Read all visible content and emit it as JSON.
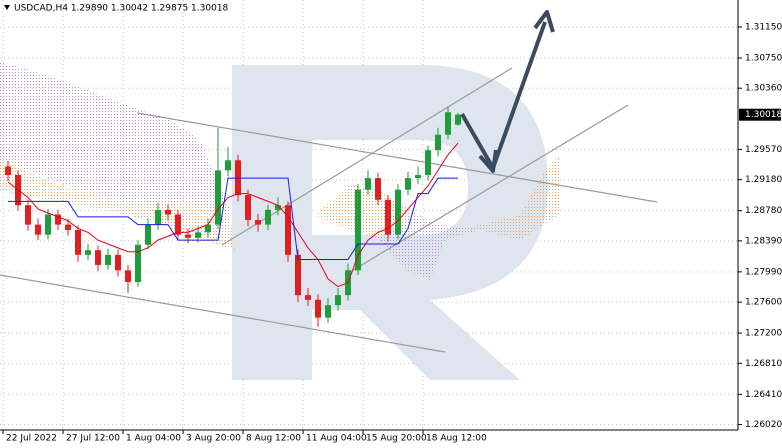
{
  "chart_data": {
    "type": "candlestick",
    "title": "USDCAD,H4  1.29890 1.30042 1.29875 1.30018",
    "categories": [
      "22 Jul 2022",
      null,
      null,
      null,
      null,
      null,
      "27 Jul 12:00",
      null,
      null,
      null,
      null,
      null,
      "1 Aug 04:00",
      null,
      null,
      null,
      null,
      null,
      "3 Aug 20:00",
      null,
      null,
      null,
      null,
      null,
      "8 Aug 12:00",
      null,
      null,
      null,
      null,
      null,
      "11 Aug 04:00",
      null,
      null,
      null,
      null,
      null,
      "15 Aug 20:00",
      null,
      null,
      null,
      null,
      null,
      "18 Aug 12:00",
      null,
      null,
      null
    ],
    "open": [
      1.2935,
      1.2924,
      1.2885,
      1.286,
      1.2847,
      1.2873,
      1.286,
      1.2853,
      1.2821,
      1.2827,
      1.2808,
      1.2821,
      1.2801,
      1.2786,
      1.2834,
      1.286,
      1.2879,
      1.2873,
      1.2847,
      1.2843,
      1.285,
      1.286,
      1.293,
      1.2943,
      1.2898,
      1.2866,
      1.286,
      1.2879,
      1.2885,
      1.2821,
      1.2769,
      1.2763,
      1.274,
      1.2756,
      1.2769,
      1.2801,
      1.2905,
      1.292,
      1.2892,
      1.2847,
      1.2905,
      1.292,
      1.2924,
      1.2956,
      1.2976,
      1.2989
    ],
    "high": [
      1.2942,
      1.293,
      1.2892,
      1.2868,
      1.288,
      1.2879,
      1.2867,
      1.2859,
      1.2835,
      1.2833,
      1.2829,
      1.2828,
      1.2808,
      1.284,
      1.2868,
      1.2888,
      1.2886,
      1.2879,
      1.2855,
      1.2858,
      1.2868,
      1.2985,
      1.296,
      1.295,
      1.2905,
      1.2874,
      1.2886,
      1.2895,
      1.289,
      1.2828,
      1.2778,
      1.277,
      1.2765,
      1.2778,
      1.281,
      1.2912,
      1.293,
      1.2927,
      1.2898,
      1.2912,
      1.2928,
      1.2935,
      1.2962,
      1.2985,
      1.3012,
      1.30042
    ],
    "low": [
      1.2916,
      1.2878,
      1.2852,
      1.284,
      1.2841,
      1.2853,
      1.2846,
      1.2812,
      1.2814,
      1.28,
      1.2802,
      1.2793,
      1.2772,
      1.278,
      1.2828,
      1.2853,
      1.2865,
      1.284,
      1.2836,
      1.2837,
      1.2843,
      1.2855,
      1.2922,
      1.289,
      1.2858,
      1.2851,
      1.2853,
      1.2872,
      1.2812,
      1.276,
      1.2755,
      1.2728,
      1.2733,
      1.2749,
      1.2762,
      1.2795,
      1.2898,
      1.2885,
      1.2838,
      1.2841,
      1.2898,
      1.2912,
      1.2917,
      1.2948,
      1.297,
      1.29875
    ],
    "close": [
      1.2924,
      1.2885,
      1.286,
      1.2847,
      1.2873,
      1.286,
      1.2853,
      1.2821,
      1.2827,
      1.2808,
      1.2821,
      1.2801,
      1.2786,
      1.2834,
      1.286,
      1.2879,
      1.2873,
      1.2847,
      1.2843,
      1.285,
      1.286,
      1.293,
      1.2943,
      1.2898,
      1.2866,
      1.286,
      1.2879,
      1.2885,
      1.2821,
      1.2769,
      1.2763,
      1.274,
      1.2756,
      1.2769,
      1.2801,
      1.2905,
      1.292,
      1.2892,
      1.2847,
      1.2905,
      1.292,
      1.2924,
      1.2956,
      1.2976,
      1.3005,
      1.30018
    ],
    "up_color": "#1f9d3a",
    "down_color": "#e02020",
    "indicators": [
      {
        "color": "#e8001c",
        "values": [
          1.2915,
          1.2905,
          1.2895,
          1.288,
          1.2875,
          1.287,
          1.2865,
          1.2855,
          1.285,
          1.284,
          1.2835,
          1.283,
          1.2825,
          1.2825,
          1.283,
          1.284,
          1.2845,
          1.285,
          1.285,
          1.2855,
          1.286,
          1.288,
          1.2895,
          1.29,
          1.29,
          1.2895,
          1.289,
          1.2885,
          1.287,
          1.285,
          1.283,
          1.2815,
          1.279,
          1.278,
          1.2785,
          1.282,
          1.284,
          1.285,
          1.2855,
          1.2865,
          1.288,
          1.2895,
          1.291,
          1.293,
          1.295,
          1.2965
        ]
      },
      {
        "color": "#1a1ae6",
        "values": [
          1.289,
          1.289,
          1.289,
          1.289,
          1.289,
          1.289,
          1.289,
          1.287,
          1.287,
          1.287,
          1.287,
          1.287,
          1.287,
          1.286,
          1.286,
          1.286,
          1.286,
          1.284,
          1.284,
          1.284,
          1.284,
          1.284,
          1.292,
          1.292,
          1.292,
          1.292,
          1.292,
          1.292,
          1.292,
          1.2815,
          1.2815,
          1.2815,
          1.2815,
          1.2815,
          1.2815,
          1.2835,
          1.2835,
          1.2835,
          1.2835,
          1.2835,
          1.2855,
          1.29,
          1.29,
          1.292,
          1.292,
          1.292
        ]
      }
    ],
    "ylim": [
      1.2595,
      1.31498
    ],
    "yticks": [
      {
        "value": 1.3115,
        "label": "1.31150"
      },
      {
        "value": 1.3075,
        "label": "1.30750"
      },
      {
        "value": 1.3036,
        "label": "1.30360"
      },
      {
        "value": 1.2957,
        "label": "1.29570"
      },
      {
        "value": 1.2918,
        "label": "1.29180"
      },
      {
        "value": 1.2878,
        "label": "1.28780"
      },
      {
        "value": 1.2839,
        "label": "1.28390"
      },
      {
        "value": 1.2799,
        "label": "1.27990"
      },
      {
        "value": 1.276,
        "label": "1.27600"
      },
      {
        "value": 1.272,
        "label": "1.27200"
      },
      {
        "value": 1.2681,
        "label": "1.26810"
      },
      {
        "value": 1.2641,
        "label": "1.26410"
      },
      {
        "value": 1.2602,
        "label": "1.26020"
      }
    ],
    "grid": true
  }
}
